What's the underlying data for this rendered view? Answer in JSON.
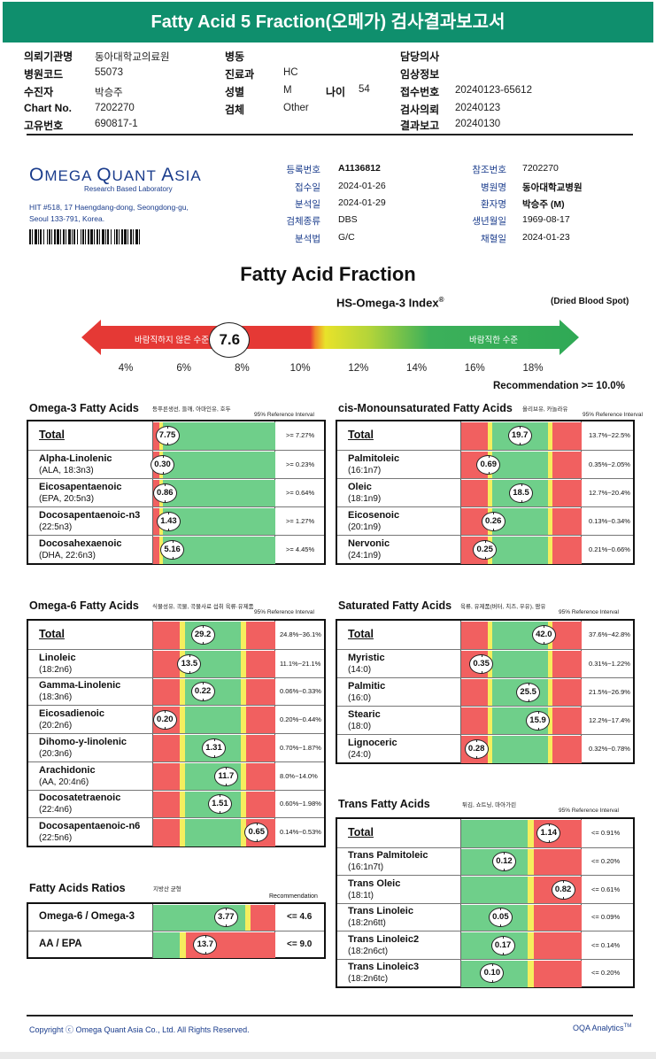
{
  "banner": {
    "title": "Fatty Acid 5 Fraction(오메가) 검사결과보고서"
  },
  "header_fields": [
    {
      "label": "의뢰기관명",
      "value": "동아대학교의료원",
      "col": 0,
      "row": 0
    },
    {
      "label": "병원코드",
      "value": "55073",
      "col": 0,
      "row": 1
    },
    {
      "label": "수진자",
      "value": "박승주",
      "col": 0,
      "row": 2
    },
    {
      "label": "Chart No.",
      "value": "7202270",
      "col": 0,
      "row": 3
    },
    {
      "label": "고유번호",
      "value": "690817-1",
      "col": 0,
      "row": 4
    },
    {
      "label": "병동",
      "value": "",
      "col": 1,
      "row": 0
    },
    {
      "label": "진료과",
      "value": "HC",
      "col": 1,
      "row": 1
    },
    {
      "label": "성별",
      "value": "M",
      "col": 1,
      "row": 2
    },
    {
      "label": "검체",
      "value": "Other",
      "col": 1,
      "row": 3
    },
    {
      "label": "담당의사",
      "value": "",
      "col": 2,
      "row": 0
    },
    {
      "label": "임상정보",
      "value": "",
      "col": 2,
      "row": 1
    },
    {
      "label": "접수번호",
      "value": "20240123-65612",
      "col": 2,
      "row": 2
    },
    {
      "label": "검사의뢰",
      "value": "20240123",
      "col": 2,
      "row": 3
    },
    {
      "label": "결과보고",
      "value": "20240130",
      "col": 2,
      "row": 4
    }
  ],
  "age": {
    "label": "나이",
    "value": "54"
  },
  "lab": {
    "logo_omega": "O",
    "logo_mega": "MEGA ",
    "logo_q": "Q",
    "logo_uant": "UANT ",
    "logo_a": "A",
    "logo_sia": "SIA",
    "tagline": "Research Based Laboratory",
    "address_1": "HIT #518, 17 Haengdang-dong, Seongdong-gu,",
    "address_2": "Seoul 133-791, Korea."
  },
  "report_info_left": [
    {
      "label": "등록번호",
      "value": "A1136812",
      "bold": true
    },
    {
      "label": "접수일",
      "value": "2024-01-26",
      "bold": false
    },
    {
      "label": "분석일",
      "value": "2024-01-29",
      "bold": false
    },
    {
      "label": "검체종류",
      "value": "DBS",
      "bold": false
    },
    {
      "label": "분석법",
      "value": "G/C",
      "bold": false
    }
  ],
  "report_info_right": [
    {
      "label": "참조번호",
      "value": "7202270",
      "bold": false
    },
    {
      "label": "병원명",
      "value": "동아대학교병원",
      "bold": true
    },
    {
      "label": "환자명",
      "value": "박승주 (M)",
      "bold": true
    },
    {
      "label": "생년월일",
      "value": "1969-08-17",
      "bold": false
    },
    {
      "label": "채혈일",
      "value": "2024-01-23",
      "bold": false
    }
  ],
  "main_title": "Fatty Acid Fraction",
  "index": {
    "title": "HS-Omega-3 Index",
    "sup": "®",
    "sample": "(Dried Blood Spot)",
    "value": "7.6",
    "value_num": 7.6,
    "left_label": "바람직하지 않은 수준",
    "right_label": "바람직한 수준",
    "ticks": [
      "4%",
      "6%",
      "8%",
      "10%",
      "12%",
      "14%",
      "16%",
      "18%"
    ],
    "recommendation": "Recommendation  >= 10.0%",
    "colors": {
      "red": "#e53935",
      "yellow": "#e8e22a",
      "green": "#3cb05a"
    }
  },
  "ref_interval_label": "95% Reference Interval",
  "total_label": "Total",
  "sections": [
    {
      "id": "omega3",
      "title": "Omega-3 Fatty Acids",
      "note": "등푸른생선, 들깨, 아마인유, 호두",
      "rows": [
        {
          "name": "Total",
          "sub": "",
          "value": "7.75",
          "ref": ">= 7.27%",
          "pos": 0.12
        },
        {
          "name": "Alpha-Linolenic",
          "sub": "(ALA, 18:3n3)",
          "value": "0.30",
          "ref": ">= 0.23%",
          "pos": 0.08
        },
        {
          "name": "Eicosapentaenoic",
          "sub": "(EPA, 20:5n3)",
          "value": "0.86",
          "ref": ">= 0.64%",
          "pos": 0.1
        },
        {
          "name": "Docosapentaenoic-n3",
          "sub": "(22:5n3)",
          "value": "1.43",
          "ref": ">= 1.27%",
          "pos": 0.13
        },
        {
          "name": "Docosahexaenoic",
          "sub": "(DHA, 22:6n3)",
          "value": "5.16",
          "ref": ">= 4.45%",
          "pos": 0.16
        }
      ]
    },
    {
      "id": "cismono",
      "title": "cis-Monounsaturated Fatty Acids",
      "note": "올리브유, 카놀라유",
      "rows": [
        {
          "name": "Total",
          "sub": "",
          "value": "19.7",
          "ref": "13.7%~22.5%",
          "pos": 0.49
        },
        {
          "name": "Palmitoleic",
          "sub": "(16:1n7)",
          "value": "0.69",
          "ref": "0.35%~2.05%",
          "pos": 0.23
        },
        {
          "name": "Oleic",
          "sub": "(18:1n9)",
          "value": "18.5",
          "ref": "12.7%~20.4%",
          "pos": 0.5
        },
        {
          "name": "Eicosenoic",
          "sub": "(20:1n9)",
          "value": "0.26",
          "ref": "0.13%~0.34%",
          "pos": 0.27
        },
        {
          "name": "Nervonic",
          "sub": "(24:1n9)",
          "value": "0.25",
          "ref": "0.21%~0.66%",
          "pos": 0.2
        }
      ]
    },
    {
      "id": "omega6",
      "title": "Omega-6 Fatty Acids",
      "note": "식물성유, 곡물, 곡물사료 섭취 육류·유제품",
      "rows": [
        {
          "name": "Total",
          "sub": "",
          "value": "29.2",
          "ref": "24.8%~36.1%",
          "pos": 0.41
        },
        {
          "name": "Linoleic",
          "sub": "(18:2n6)",
          "value": "13.5",
          "ref": "11.1%~21.1%",
          "pos": 0.3
        },
        {
          "name": "Gamma-Linolenic",
          "sub": "(18:3n6)",
          "value": "0.22",
          "ref": "0.06%~0.33%",
          "pos": 0.41
        },
        {
          "name": "Eicosadienoic",
          "sub": "(20:2n6)",
          "value": "0.20",
          "ref": "0.20%~0.44%",
          "pos": 0.1
        },
        {
          "name": "Dihomo-y-linolenic",
          "sub": "(20:3n6)",
          "value": "1.31",
          "ref": "0.70%~1.87%",
          "pos": 0.5
        },
        {
          "name": "Arachidonic",
          "sub": "(AA, 20:4n6)",
          "value": "11.7",
          "ref": "8.0%~14.0%",
          "pos": 0.6
        },
        {
          "name": "Docosatetraenoic",
          "sub": "(22:4n6)",
          "value": "1.51",
          "ref": "0.60%~1.98%",
          "pos": 0.55
        },
        {
          "name": "Docosapentaenoic-n6",
          "sub": "(22:5n6)",
          "value": "0.65",
          "ref": "0.14%~0.53%",
          "pos": 0.85
        }
      ]
    },
    {
      "id": "saturated",
      "title": "Saturated Fatty Acids",
      "note": "육류, 유제품(버터, 치즈, 우유), 팜유",
      "rows": [
        {
          "name": "Total",
          "sub": "",
          "value": "42.0",
          "ref": "37.6%~42.8%",
          "pos": 0.69
        },
        {
          "name": "Myristic",
          "sub": "(14:0)",
          "value": "0.35",
          "ref": "0.31%~1.22%",
          "pos": 0.17
        },
        {
          "name": "Palmitic",
          "sub": "(16:0)",
          "value": "25.5",
          "ref": "21.5%~26.9%",
          "pos": 0.56
        },
        {
          "name": "Stearic",
          "sub": "(18:0)",
          "value": "15.9",
          "ref": "12.2%~17.4%",
          "pos": 0.64
        },
        {
          "name": "Lignoceric",
          "sub": "(24:0)",
          "value": "0.28",
          "ref": "0.32%~0.78%",
          "pos": 0.13
        }
      ]
    },
    {
      "id": "trans",
      "title": "Trans Fatty Acids",
      "note": "튀김, 쇼트닝, 마아가린",
      "rows": [
        {
          "name": "Total",
          "sub": "",
          "value": "1.14",
          "ref": "<= 0.91%",
          "pos": 0.73
        },
        {
          "name": "Trans Palmitoleic",
          "sub": "(16:1n7t)",
          "value": "0.12",
          "ref": "<= 0.20%",
          "pos": 0.36
        },
        {
          "name": "Trans Oleic",
          "sub": "(18:1t)",
          "value": "0.82",
          "ref": "<= 0.61%",
          "pos": 0.85
        },
        {
          "name": "Trans Linoleic",
          "sub": "(18:2n6tt)",
          "value": "0.05",
          "ref": "<= 0.09%",
          "pos": 0.33
        },
        {
          "name": "Trans Linoleic2",
          "sub": "(18:2n6ct)",
          "value": "0.17",
          "ref": "<= 0.14%",
          "pos": 0.35
        },
        {
          "name": "Trans Linoleic3",
          "sub": "(18:2n6tc)",
          "value": "0.10",
          "ref": "<= 0.20%",
          "pos": 0.26
        }
      ]
    }
  ],
  "ratios": {
    "title": "Fatty Acids Ratios",
    "note": "지방산 균형",
    "recommendation_label": "Recommendation",
    "rows": [
      {
        "name": "Omega-6 / Omega-3",
        "value": "3.77",
        "ref": "<= 4.6",
        "pos": 0.6
      },
      {
        "name": "AA / EPA",
        "value": "13.7",
        "ref": "<= 9.0",
        "pos": 0.43
      }
    ]
  },
  "footer": {
    "copyright": "Copyright ⓒ Omega Quant Asia Co., Ltd.  All Rights Reserved.",
    "brand": "OQA Analytics",
    "brand_sup": "TM"
  },
  "bar_colors": {
    "red": "#f16060",
    "yellow": "#f5ee5e",
    "green": "#6fcf8a",
    "dark_green": "#4eb370"
  }
}
